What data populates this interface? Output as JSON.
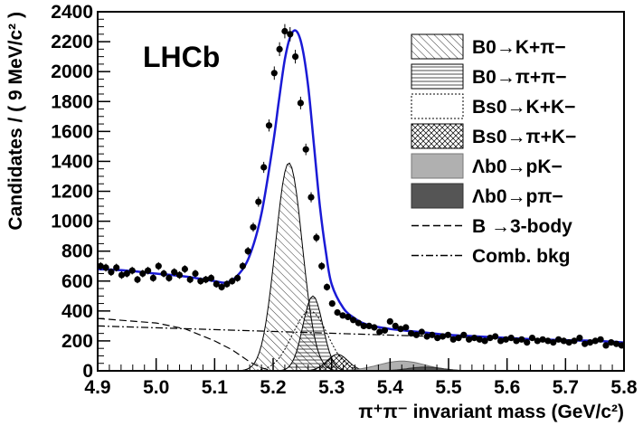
{
  "chart_data": {
    "type": "line",
    "label": "LHCb",
    "xlabel": "π⁺π⁻ invariant mass (GeV/c²)",
    "ylabel": "Candidates / ( 9 MeV/c² )",
    "xlim": [
      4.9,
      5.8
    ],
    "ylim": [
      0,
      2400
    ],
    "x_ticks": [
      "4.9",
      "5.0",
      "5.1",
      "5.2",
      "5.3",
      "5.4",
      "5.5",
      "5.6",
      "5.7",
      "5.8"
    ],
    "y_ticks": [
      "0",
      "200",
      "400",
      "600",
      "800",
      "1000",
      "1200",
      "1400",
      "1600",
      "1800",
      "2000",
      "2200",
      "2400"
    ],
    "legend": [
      {
        "label": "B0→K+π−",
        "style": "hatch-diag"
      },
      {
        "label": "B0→π+π−",
        "style": "hatch-horiz"
      },
      {
        "label": "Bs0→K+K−",
        "style": "dotted"
      },
      {
        "label": "Bs0→π+K−",
        "style": "crosshatch"
      },
      {
        "label": "Λb0→pK−",
        "style": "fill-light-gray"
      },
      {
        "label": "Λb0→pπ−",
        "style": "fill-dark-gray"
      },
      {
        "label": "B →3-body",
        "style": "dashed"
      },
      {
        "label": "Comb. bkg",
        "style": "dash-dot"
      }
    ],
    "colors": {
      "total_fit": "#1a1ad6",
      "lambda_pK": "#b0b0b0",
      "lambda_ppi": "#555555",
      "data": "#000000"
    },
    "data_points": {
      "x": [
        4.905,
        4.914,
        4.923,
        4.932,
        4.941,
        4.95,
        4.959,
        4.968,
        4.977,
        4.986,
        4.995,
        5.004,
        5.013,
        5.022,
        5.031,
        5.04,
        5.049,
        5.058,
        5.067,
        5.076,
        5.085,
        5.094,
        5.103,
        5.112,
        5.121,
        5.13,
        5.139,
        5.148,
        5.157,
        5.166,
        5.175,
        5.184,
        5.193,
        5.202,
        5.211,
        5.22,
        5.229,
        5.238,
        5.247,
        5.256,
        5.265,
        5.274,
        5.283,
        5.292,
        5.301,
        5.31,
        5.319,
        5.328,
        5.337,
        5.346,
        5.355,
        5.364,
        5.373,
        5.382,
        5.391,
        5.4,
        5.409,
        5.418,
        5.427,
        5.436,
        5.445,
        5.454,
        5.463,
        5.472,
        5.481,
        5.49,
        5.499,
        5.508,
        5.517,
        5.526,
        5.535,
        5.544,
        5.553,
        5.562,
        5.571,
        5.58,
        5.589,
        5.598,
        5.607,
        5.616,
        5.625,
        5.634,
        5.643,
        5.652,
        5.661,
        5.67,
        5.679,
        5.688,
        5.697,
        5.706,
        5.715,
        5.724,
        5.733,
        5.742,
        5.751,
        5.76,
        5.769,
        5.778,
        5.787,
        5.796
      ],
      "y": [
        700,
        690,
        660,
        690,
        640,
        650,
        670,
        610,
        650,
        670,
        620,
        700,
        650,
        620,
        660,
        640,
        680,
        610,
        650,
        600,
        610,
        620,
        580,
        560,
        580,
        600,
        620,
        700,
        800,
        960,
        1130,
        1360,
        1640,
        1990,
        2150,
        2270,
        2250,
        2100,
        1790,
        1480,
        1160,
        890,
        700,
        560,
        450,
        390,
        370,
        360,
        340,
        320,
        300,
        300,
        290,
        260,
        270,
        330,
        300,
        280,
        290,
        250,
        240,
        260,
        230,
        240,
        220,
        230,
        240,
        210,
        220,
        240,
        210,
        220,
        210,
        200,
        220,
        230,
        200,
        210,
        220,
        200,
        210,
        190,
        220,
        200,
        210,
        200,
        190,
        210,
        200,
        190,
        200,
        220,
        180,
        190,
        200,
        210,
        170,
        190,
        180,
        170
      ]
    },
    "total_fit": {
      "x": [
        4.9,
        4.95,
        5.0,
        5.05,
        5.1,
        5.12,
        5.14,
        5.16,
        5.18,
        5.2,
        5.21,
        5.22,
        5.23,
        5.24,
        5.25,
        5.26,
        5.27,
        5.28,
        5.29,
        5.3,
        5.32,
        5.34,
        5.36,
        5.4,
        5.45,
        5.5,
        5.55,
        5.6,
        5.65,
        5.7,
        5.75,
        5.8
      ],
      "y": [
        680,
        670,
        650,
        630,
        600,
        590,
        640,
        770,
        1050,
        1520,
        1810,
        2080,
        2240,
        2270,
        2160,
        1900,
        1500,
        1100,
        800,
        580,
        420,
        350,
        310,
        280,
        260,
        240,
        230,
        220,
        210,
        205,
        200,
        190
      ]
    },
    "components": [
      {
        "label": "B0→K+π−",
        "peak": 5.227,
        "height": 1390,
        "sigma": 0.023
      },
      {
        "label": "B0→π+π−",
        "peak": 5.268,
        "height": 500,
        "sigma": 0.017
      },
      {
        "label": "Bs0→K+K−",
        "peak": 5.263,
        "height": 400,
        "sigma": 0.03
      },
      {
        "label": "Bs0→π+K−",
        "peak": 5.31,
        "height": 110,
        "sigma": 0.018
      },
      {
        "label": "Λb0→pK−",
        "peak": 5.42,
        "height": 65,
        "sigma": 0.04
      },
      {
        "label": "Λb0→pπ−",
        "peak": 5.46,
        "height": 25,
        "sigma": 0.03
      }
    ],
    "three_body": {
      "x": [
        4.9,
        5.0,
        5.05,
        5.1,
        5.13,
        5.16,
        5.18,
        5.2
      ],
      "y": [
        350,
        320,
        280,
        200,
        140,
        60,
        20,
        0
      ]
    },
    "comb_bkg": {
      "x": [
        4.9,
        5.8
      ],
      "y": [
        300,
        190
      ]
    }
  }
}
